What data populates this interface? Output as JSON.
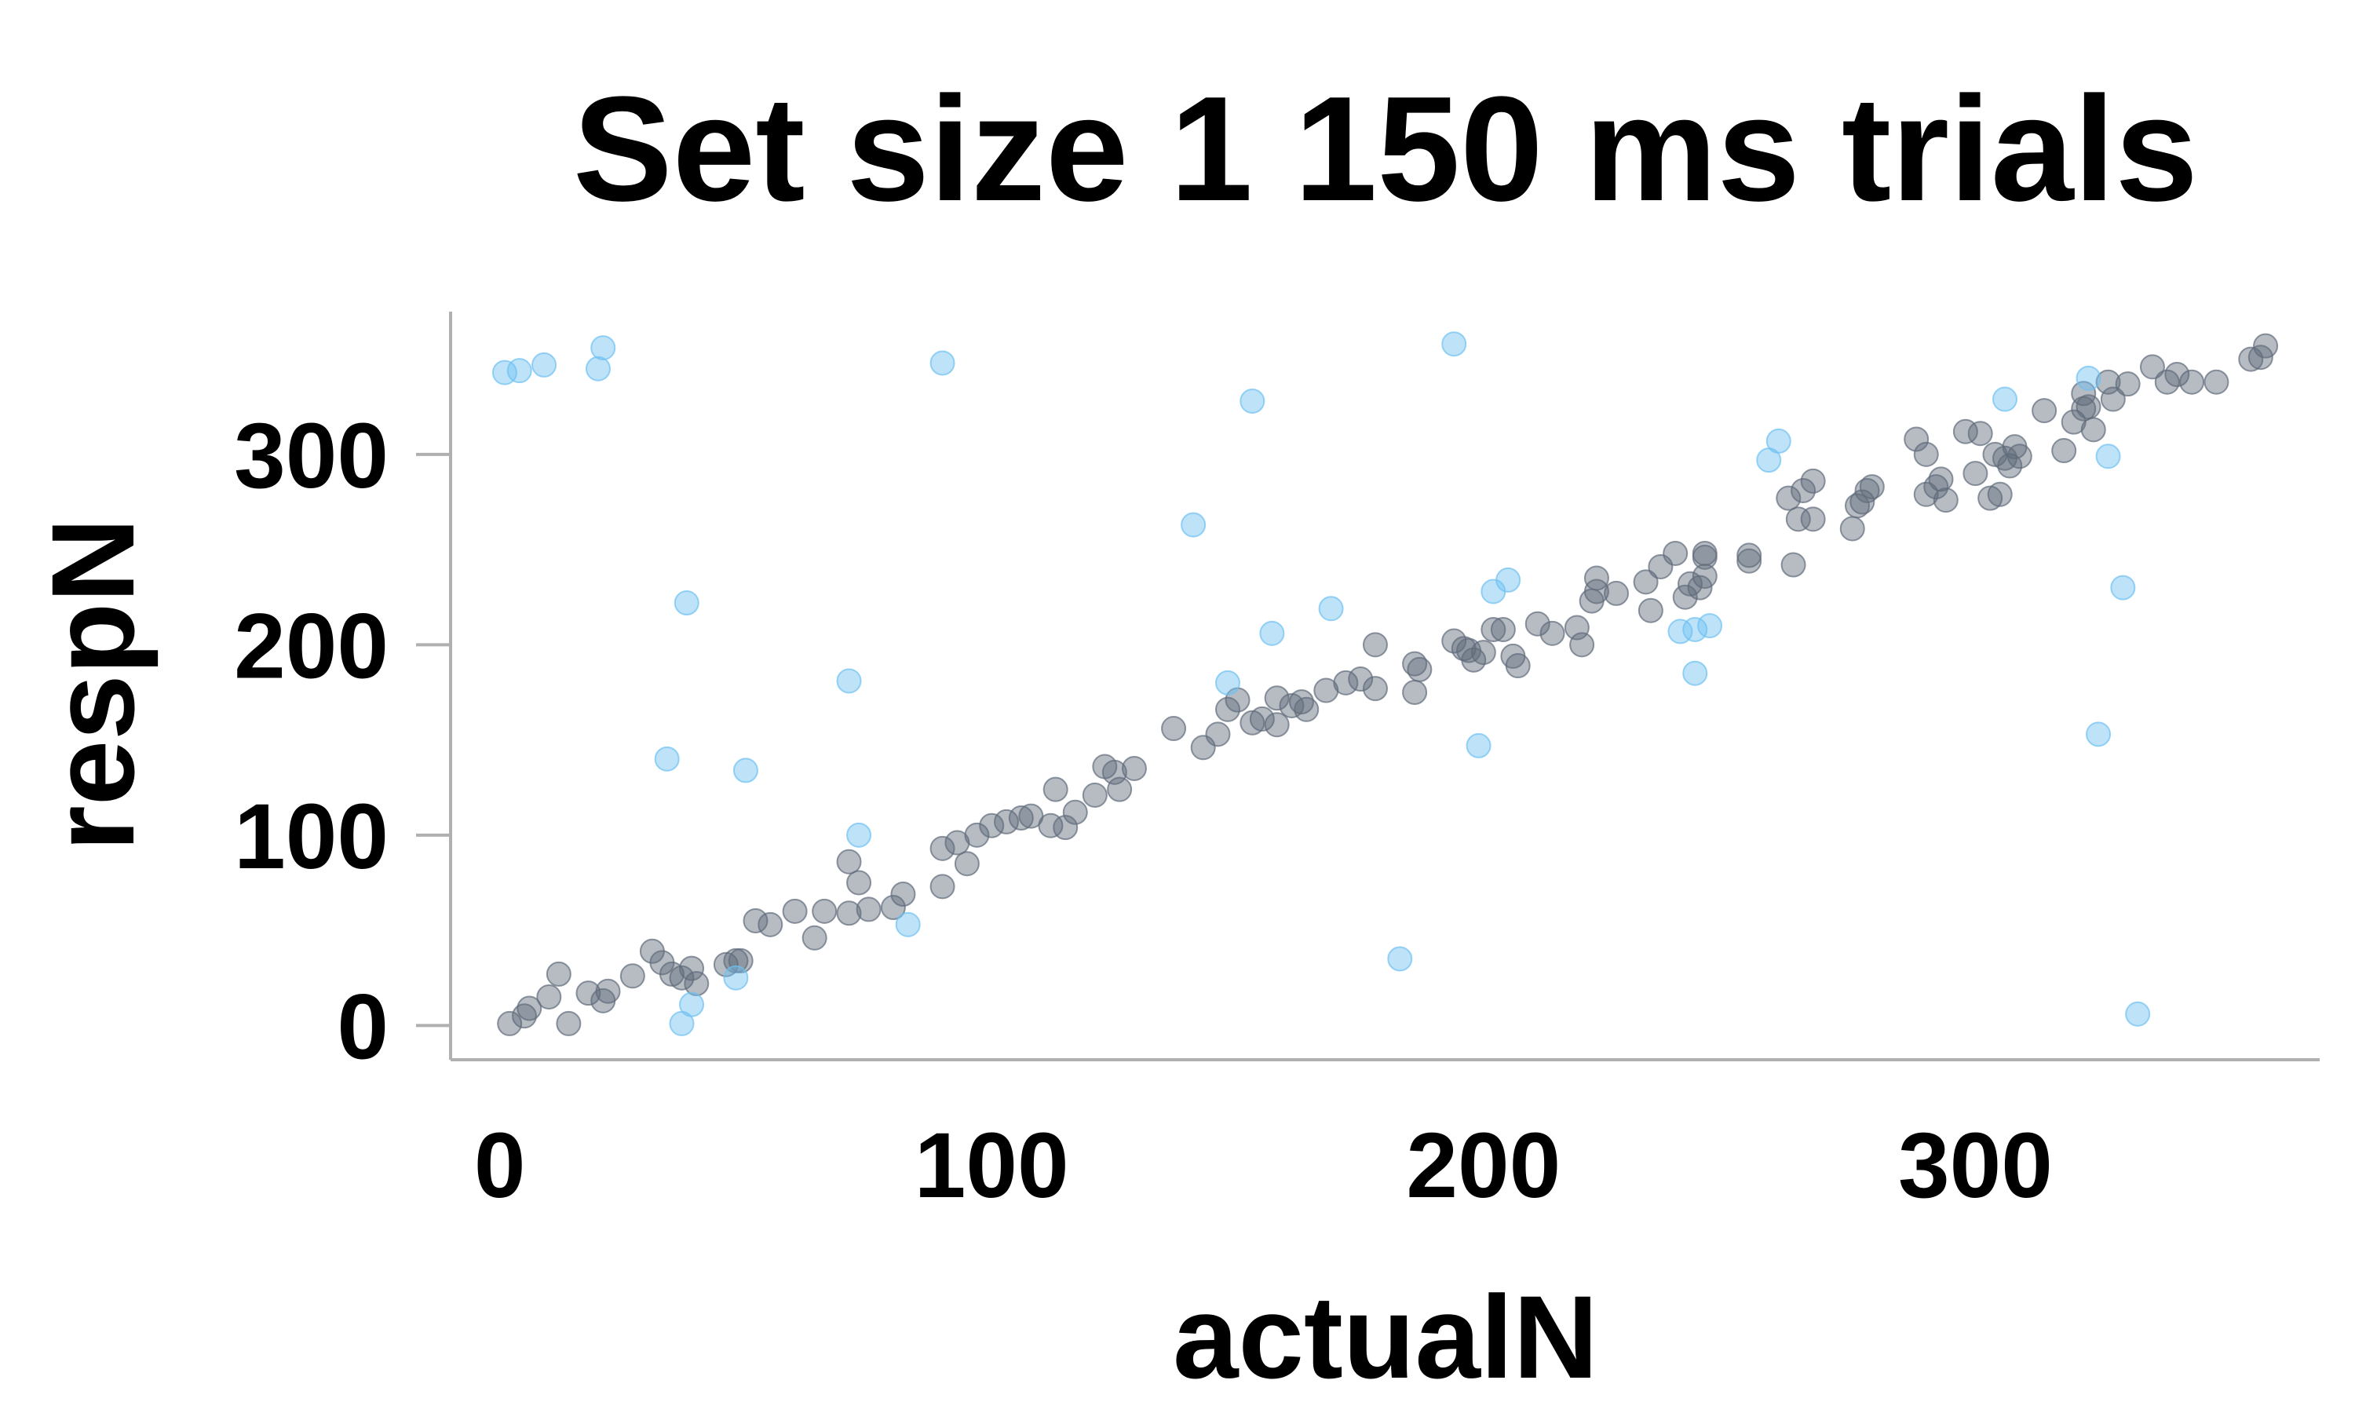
{
  "chart_data": {
    "type": "scatter",
    "title": "Set size 1 150 ms trials",
    "xlabel": "actualN",
    "ylabel": "respN",
    "xlim": [
      -10,
      370
    ],
    "ylim": [
      -18,
      375
    ],
    "x_ticks": [
      0,
      100,
      200,
      300
    ],
    "y_ticks": [
      0,
      100,
      200,
      300
    ],
    "grid": false,
    "legend": "none",
    "colors": {
      "series_a": "#5f6b7a",
      "series_b": "#6ec1f2"
    },
    "series": [
      {
        "color_key": "series_a",
        "points": [
          [
            2,
            1
          ],
          [
            5,
            5
          ],
          [
            6,
            9
          ],
          [
            10,
            15
          ],
          [
            12,
            27
          ],
          [
            14,
            1
          ],
          [
            18,
            17
          ],
          [
            21,
            13
          ],
          [
            22,
            18
          ],
          [
            27,
            26
          ],
          [
            31,
            39
          ],
          [
            33,
            33
          ],
          [
            35,
            27
          ],
          [
            37,
            25
          ],
          [
            39,
            30
          ],
          [
            40,
            22
          ],
          [
            46,
            32
          ],
          [
            48,
            34
          ],
          [
            49,
            34
          ],
          [
            52,
            55
          ],
          [
            55,
            53
          ],
          [
            60,
            60
          ],
          [
            64,
            46
          ],
          [
            66,
            60
          ],
          [
            71,
            59
          ],
          [
            71,
            86
          ],
          [
            73,
            75
          ],
          [
            75,
            61
          ],
          [
            80,
            62
          ],
          [
            82,
            69
          ],
          [
            90,
            73
          ],
          [
            90,
            93
          ],
          [
            93,
            96
          ],
          [
            95,
            85
          ],
          [
            97,
            100
          ],
          [
            100,
            105
          ],
          [
            103,
            107
          ],
          [
            106,
            109
          ],
          [
            108,
            110
          ],
          [
            112,
            105
          ],
          [
            113,
            124
          ],
          [
            115,
            104
          ],
          [
            117,
            112
          ],
          [
            121,
            121
          ],
          [
            123,
            136
          ],
          [
            125,
            133
          ],
          [
            126,
            124
          ],
          [
            129,
            135
          ],
          [
            137,
            156
          ],
          [
            143,
            146
          ],
          [
            146,
            153
          ],
          [
            148,
            166
          ],
          [
            150,
            171
          ],
          [
            153,
            159
          ],
          [
            155,
            161
          ],
          [
            158,
            172
          ],
          [
            158,
            158
          ],
          [
            161,
            168
          ],
          [
            163,
            170
          ],
          [
            164,
            166
          ],
          [
            168,
            176
          ],
          [
            172,
            180
          ],
          [
            175,
            182
          ],
          [
            178,
            177
          ],
          [
            178,
            200
          ],
          [
            186,
            175
          ],
          [
            186,
            190
          ],
          [
            187,
            187
          ],
          [
            194,
            202
          ],
          [
            196,
            198
          ],
          [
            197,
            197
          ],
          [
            198,
            192
          ],
          [
            200,
            196
          ],
          [
            202,
            208
          ],
          [
            204,
            208
          ],
          [
            206,
            194
          ],
          [
            207,
            189
          ],
          [
            211,
            211
          ],
          [
            214,
            206
          ],
          [
            219,
            209
          ],
          [
            220,
            200
          ],
          [
            222,
            223
          ],
          [
            223,
            228
          ],
          [
            223,
            235
          ],
          [
            227,
            227
          ],
          [
            233,
            233
          ],
          [
            234,
            218
          ],
          [
            236,
            241
          ],
          [
            239,
            248
          ],
          [
            241,
            225
          ],
          [
            242,
            232
          ],
          [
            244,
            230
          ],
          [
            245,
            236
          ],
          [
            245,
            246
          ],
          [
            245,
            248
          ],
          [
            254,
            244
          ],
          [
            254,
            247
          ],
          [
            262,
            277
          ],
          [
            263,
            242
          ],
          [
            264,
            266
          ],
          [
            265,
            281
          ],
          [
            267,
            286
          ],
          [
            267,
            266
          ],
          [
            275,
            261
          ],
          [
            276,
            273
          ],
          [
            277,
            275
          ],
          [
            278,
            281
          ],
          [
            279,
            283
          ],
          [
            288,
            308
          ],
          [
            290,
            300
          ],
          [
            290,
            279
          ],
          [
            292,
            283
          ],
          [
            293,
            287
          ],
          [
            294,
            276
          ],
          [
            298,
            312
          ],
          [
            300,
            290
          ],
          [
            301,
            311
          ],
          [
            303,
            277
          ],
          [
            304,
            300
          ],
          [
            305,
            279
          ],
          [
            306,
            298
          ],
          [
            307,
            294
          ],
          [
            308,
            304
          ],
          [
            309,
            299
          ],
          [
            314,
            323
          ],
          [
            318,
            302
          ],
          [
            320,
            317
          ],
          [
            322,
            332
          ],
          [
            322,
            324
          ],
          [
            323,
            325
          ],
          [
            324,
            313
          ],
          [
            327,
            338
          ],
          [
            328,
            329
          ],
          [
            331,
            337
          ],
          [
            336,
            346
          ],
          [
            339,
            338
          ],
          [
            341,
            342
          ],
          [
            344,
            338
          ],
          [
            349,
            338
          ],
          [
            356,
            350
          ],
          [
            358,
            351
          ],
          [
            359,
            357
          ]
        ]
      },
      {
        "color_key": "series_b",
        "points": [
          [
            1,
            343
          ],
          [
            4,
            344
          ],
          [
            9,
            347
          ],
          [
            20,
            345
          ],
          [
            21,
            356
          ],
          [
            34,
            140
          ],
          [
            37,
            1
          ],
          [
            38,
            222
          ],
          [
            39,
            11
          ],
          [
            48,
            25
          ],
          [
            50,
            134
          ],
          [
            71,
            181
          ],
          [
            73,
            100
          ],
          [
            83,
            53
          ],
          [
            90,
            348
          ],
          [
            141,
            263
          ],
          [
            148,
            180
          ],
          [
            153,
            328
          ],
          [
            157,
            206
          ],
          [
            169,
            219
          ],
          [
            183,
            35
          ],
          [
            194,
            358
          ],
          [
            199,
            147
          ],
          [
            202,
            228
          ],
          [
            205,
            234
          ],
          [
            240,
            207
          ],
          [
            243,
            185
          ],
          [
            243,
            208
          ],
          [
            246,
            210
          ],
          [
            258,
            297
          ],
          [
            260,
            307
          ],
          [
            306,
            329
          ],
          [
            323,
            340
          ],
          [
            325,
            153
          ],
          [
            327,
            299
          ],
          [
            330,
            230
          ],
          [
            333,
            6
          ]
        ]
      }
    ]
  }
}
